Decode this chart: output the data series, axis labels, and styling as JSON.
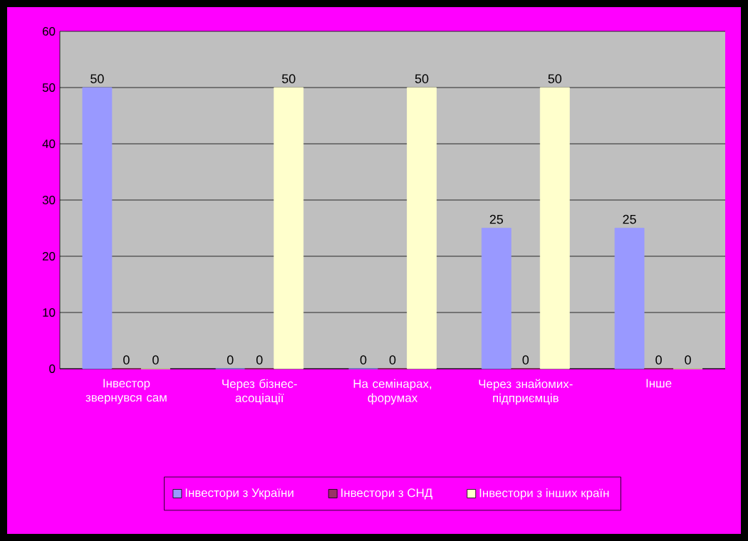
{
  "chart_data": {
    "type": "bar",
    "categories": [
      "Інвестор звернувся сам",
      "Через бізнес-асоціації",
      "На семінарах, форумах",
      "Через знайомих-підприємців",
      "Інше"
    ],
    "series": [
      {
        "name": "Інвестори з України",
        "color": "#9999ff",
        "values": [
          50,
          0,
          0,
          25,
          25
        ]
      },
      {
        "name": "Інвестори з СНД",
        "color": "#993366",
        "values": [
          0,
          0,
          0,
          0,
          0
        ]
      },
      {
        "name": "Інвестори з інших країн",
        "color": "#ffffcc",
        "values": [
          0,
          50,
          50,
          50,
          0
        ]
      }
    ],
    "ylim": [
      0,
      60
    ],
    "yticks": [
      0,
      10,
      20,
      30,
      40,
      50,
      60
    ],
    "grid": "y",
    "legend": "bottom",
    "data_labels": true
  }
}
